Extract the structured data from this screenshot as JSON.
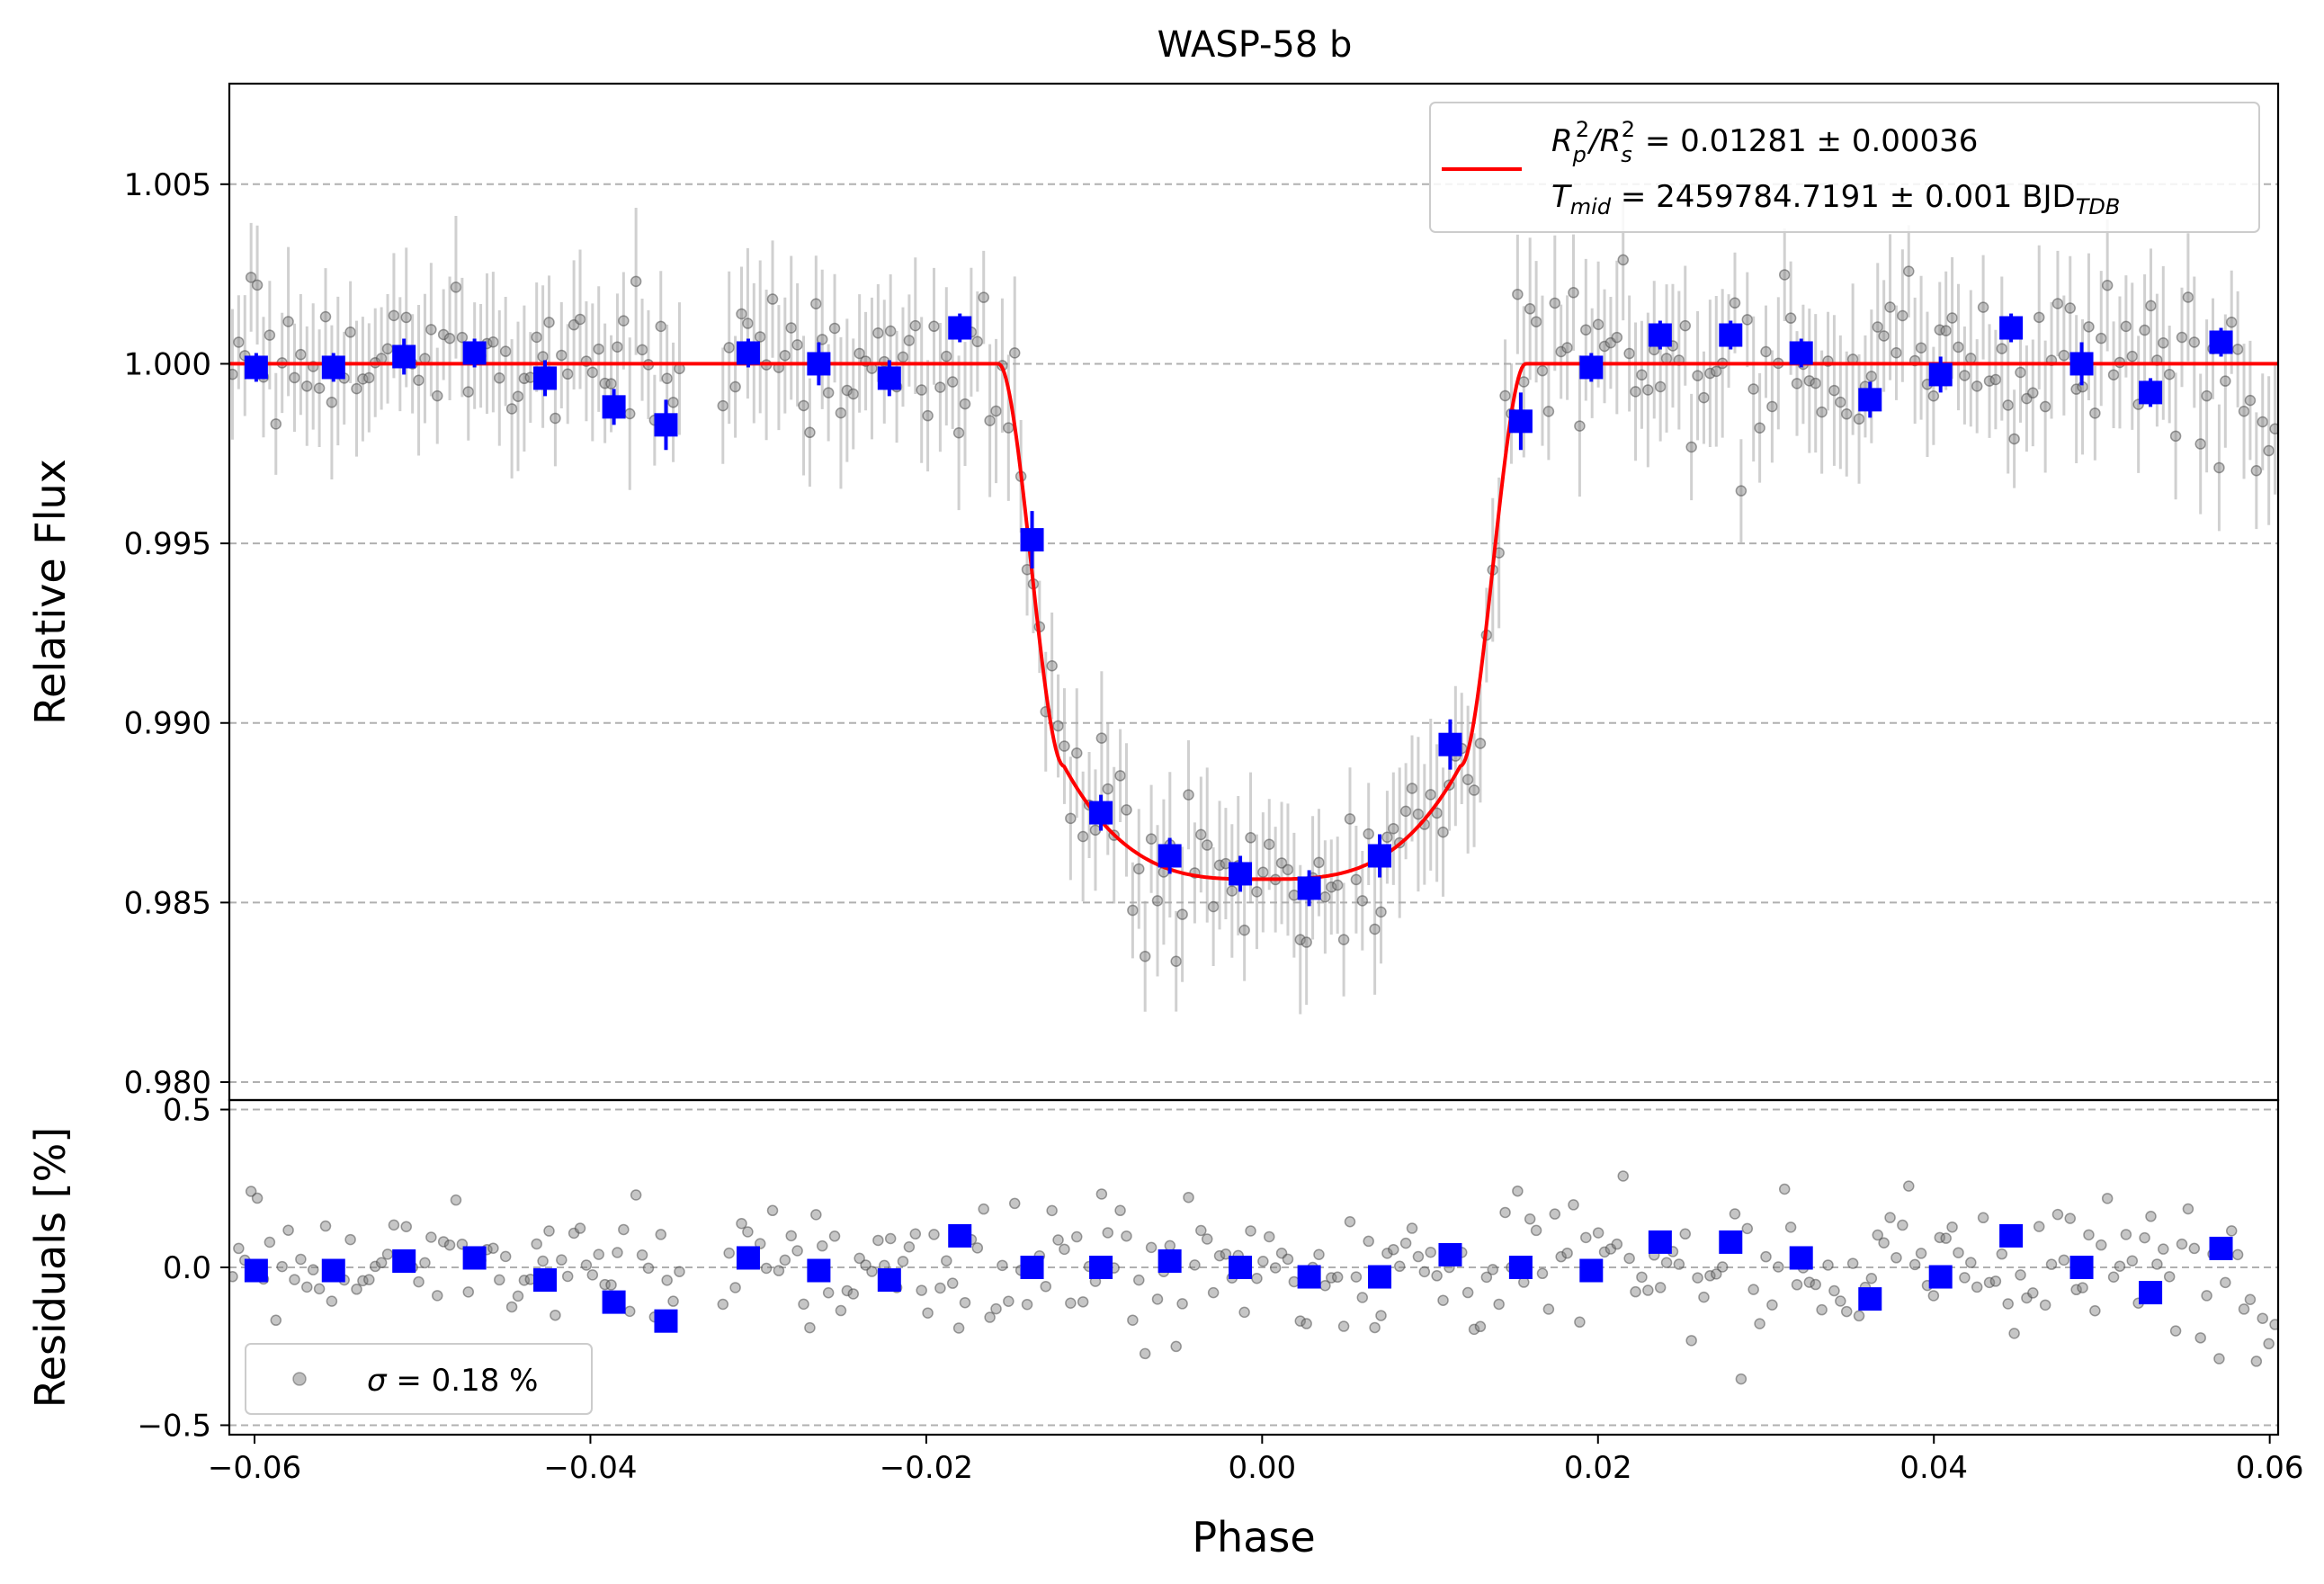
{
  "chart_data": [
    {
      "type": "scatter",
      "title": "WASP-58 b",
      "xlabel": "",
      "ylabel": "Relative Flux",
      "xlim": [
        -0.0615,
        0.0605
      ],
      "ylim": [
        0.9795,
        1.0078
      ],
      "y_ticks": [
        0.98,
        0.985,
        0.99,
        0.995,
        1.0,
        1.005
      ],
      "y_tick_labels": [
        "0.980",
        "0.985",
        "0.990",
        "0.995",
        "1.000",
        "1.005"
      ],
      "grid": "horizontal dashed",
      "legend": {
        "placement": "top-right",
        "line1": {
          "a": "R",
          "a_sub": "p",
          "a_sup": "2",
          "b": "/R",
          "b_sub": "s",
          "b_sup": "2",
          "rest": " = 0.01281 ± 0.00036"
        },
        "line2": {
          "a": "T",
          "a_sub": "mid",
          "rest": " = 2459784.7191 ± 0.001 BJD",
          "rest_sub": "TDB"
        }
      },
      "model": {
        "name": "transit model",
        "color": "#ff0000",
        "depth_rp2_rs2": 0.01281,
        "t_mid": 2459784.7191,
        "phase_contact_1": -0.0157,
        "phase_contact_2": -0.0118,
        "phase_contact_3": 0.0118,
        "phase_contact_4": 0.0157,
        "baseline": 1.0,
        "min_flux": 0.98565
      },
      "binned": {
        "name": "binned data",
        "color": "#0000ff",
        "x": [
          -0.0599,
          -0.0553,
          -0.0511,
          -0.0469,
          -0.0427,
          -0.0386,
          -0.0355,
          -0.0306,
          -0.0264,
          -0.0222,
          -0.018,
          -0.0137,
          -0.0096,
          -0.0055,
          -0.0013,
          0.0028,
          0.007,
          0.0112,
          0.0154,
          0.0196,
          0.0237,
          0.0279,
          0.0321,
          0.0362,
          0.0404,
          0.0446,
          0.0488,
          0.0529,
          0.0571
        ],
        "y": [
          0.9999,
          0.9999,
          1.0002,
          1.0003,
          0.9996,
          0.9988,
          0.9983,
          1.0003,
          1.0,
          0.9996,
          1.001,
          0.9951,
          0.9875,
          0.9863,
          0.9858,
          0.9854,
          0.9863,
          0.9894,
          0.9984,
          0.9999,
          1.0008,
          1.0008,
          1.0003,
          0.999,
          0.9997,
          1.001,
          1.0,
          0.9992,
          1.0006
        ],
        "yerr": [
          0.0004,
          0.0004,
          0.0005,
          0.0004,
          0.0005,
          0.0005,
          0.0007,
          0.0004,
          0.0006,
          0.0005,
          0.0004,
          0.0008,
          0.0005,
          0.0005,
          0.0005,
          0.0005,
          0.0006,
          0.0007,
          0.0008,
          0.0004,
          0.0004,
          0.0004,
          0.0004,
          0.0005,
          0.0005,
          0.0004,
          0.0006,
          0.0004,
          0.0004
        ]
      },
      "raw": {
        "name": "unbinned data",
        "color": "#808080",
        "n_points": 330,
        "typical_yerr": 0.0018,
        "gap_ranges": [
          [
            -0.0345,
            -0.0322
          ]
        ]
      }
    },
    {
      "type": "scatter",
      "xlabel": "Phase",
      "ylabel": "Residuals [%]",
      "xlim": [
        -0.0615,
        0.0605
      ],
      "ylim": [
        -0.53,
        0.53
      ],
      "x_ticks": [
        -0.06,
        -0.04,
        -0.02,
        0.0,
        0.02,
        0.04,
        0.06
      ],
      "x_tick_labels": [
        "−0.06",
        "−0.04",
        "−0.02",
        "0.00",
        "0.02",
        "0.04",
        "0.06"
      ],
      "y_ticks": [
        -0.5,
        0.0,
        0.5
      ],
      "y_tick_labels": [
        "−0.5",
        "0.0",
        "0.5"
      ],
      "grid": "horizontal dashed",
      "legend": {
        "placement": "bottom-left",
        "sigma_symbol": "σ",
        "sigma_text": " = 0.18 %"
      },
      "binned_residuals": {
        "color": "#0000ff",
        "x": [
          -0.0599,
          -0.0553,
          -0.0511,
          -0.0469,
          -0.0427,
          -0.0386,
          -0.0355,
          -0.0306,
          -0.0264,
          -0.0222,
          -0.018,
          -0.0137,
          -0.0096,
          -0.0055,
          -0.0013,
          0.0028,
          0.007,
          0.0112,
          0.0154,
          0.0196,
          0.0237,
          0.0279,
          0.0321,
          0.0362,
          0.0404,
          0.0446,
          0.0488,
          0.0529,
          0.0571
        ],
        "y": [
          -0.01,
          -0.01,
          0.02,
          0.03,
          -0.04,
          -0.11,
          -0.17,
          0.03,
          -0.01,
          -0.04,
          0.1,
          0.0,
          0.0,
          0.02,
          0.0,
          -0.03,
          -0.03,
          0.04,
          0.0,
          -0.01,
          0.08,
          0.08,
          0.03,
          -0.1,
          -0.03,
          0.1,
          0.0,
          -0.08,
          0.06
        ]
      },
      "raw_residuals": {
        "color": "#808080",
        "sigma_percent": 0.18
      }
    }
  ]
}
